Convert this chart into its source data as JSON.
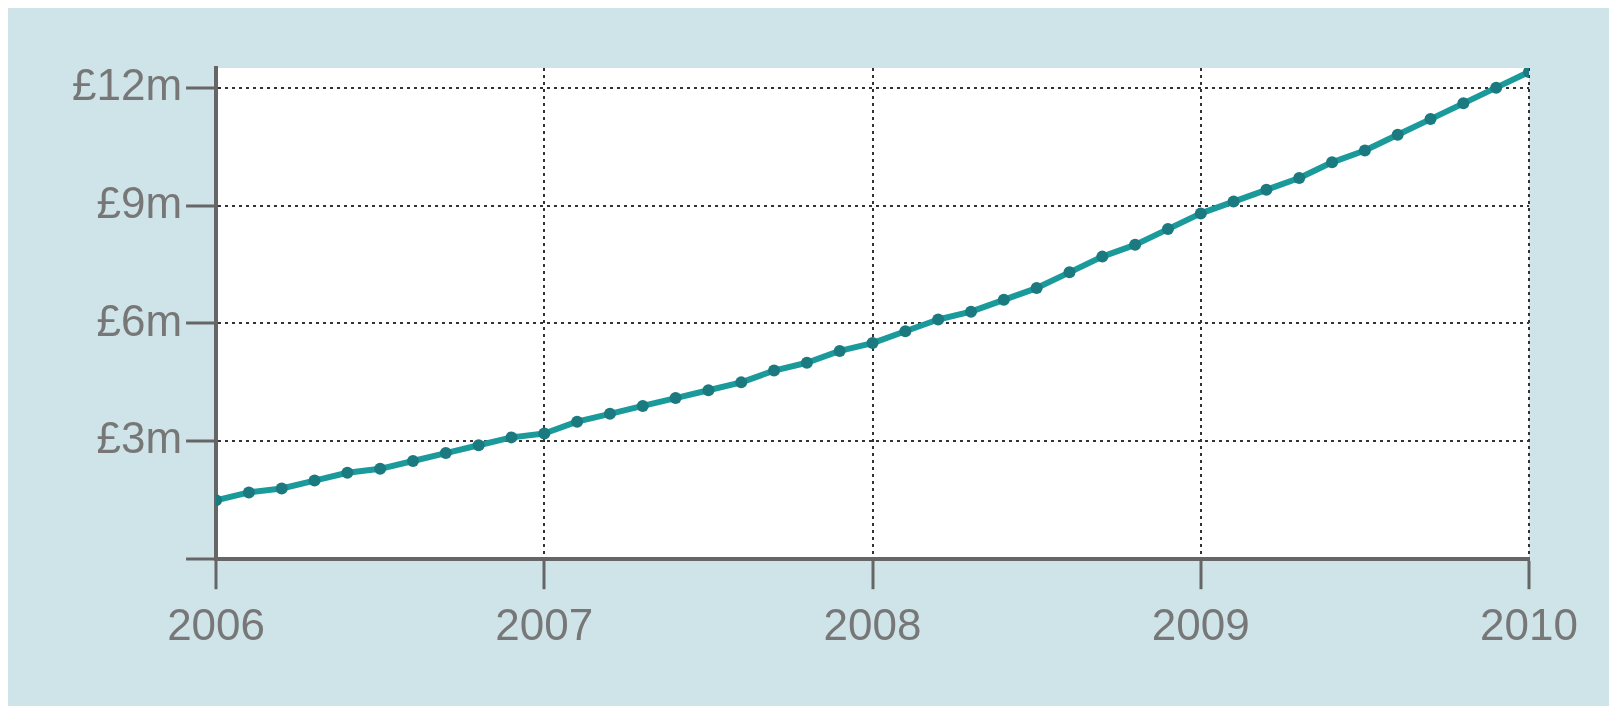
{
  "chart_data": {
    "type": "line",
    "x": [
      2006,
      2006.1,
      2006.2,
      2006.3,
      2006.4,
      2006.5,
      2006.6,
      2006.7,
      2006.8,
      2006.9,
      2007,
      2007.1,
      2007.2,
      2007.3,
      2007.4,
      2007.5,
      2007.6,
      2007.7,
      2007.8,
      2007.9,
      2008,
      2008.1,
      2008.2,
      2008.3,
      2008.4,
      2008.5,
      2008.6,
      2008.7,
      2008.8,
      2008.9,
      2009,
      2009.1,
      2009.2,
      2009.3,
      2009.4,
      2009.5,
      2009.6,
      2009.7,
      2009.8,
      2009.9,
      2010
    ],
    "series": [
      {
        "color": "#1a9a9a",
        "values": [
          1.5,
          1.7,
          1.8,
          2.0,
          2.2,
          2.3,
          2.5,
          2.7,
          2.9,
          3.1,
          3.2,
          3.5,
          3.7,
          3.9,
          4.1,
          4.3,
          4.5,
          4.8,
          5.0,
          5.3,
          5.5,
          5.8,
          6.1,
          6.3,
          6.6,
          6.9,
          7.3,
          7.7,
          8.0,
          8.4,
          8.8,
          9.1,
          9.4,
          9.7,
          10.1,
          10.4,
          10.8,
          11.2,
          11.6,
          12.0,
          12.4
        ]
      }
    ],
    "xlim": [
      2006,
      2010
    ],
    "xticks": [
      2006,
      2007,
      2008,
      2009,
      2010
    ],
    "ylim": [
      0,
      12.5
    ],
    "yticks": [
      {
        "value": 0,
        "label": null
      },
      {
        "value": 3,
        "label": "£3m"
      },
      {
        "value": 6,
        "label": "£6m"
      },
      {
        "value": 9,
        "label": "£9m"
      },
      {
        "value": 12,
        "label": "£12m"
      }
    ],
    "grid": true,
    "legend": false,
    "marker": "circle",
    "line_style": "solid"
  }
}
